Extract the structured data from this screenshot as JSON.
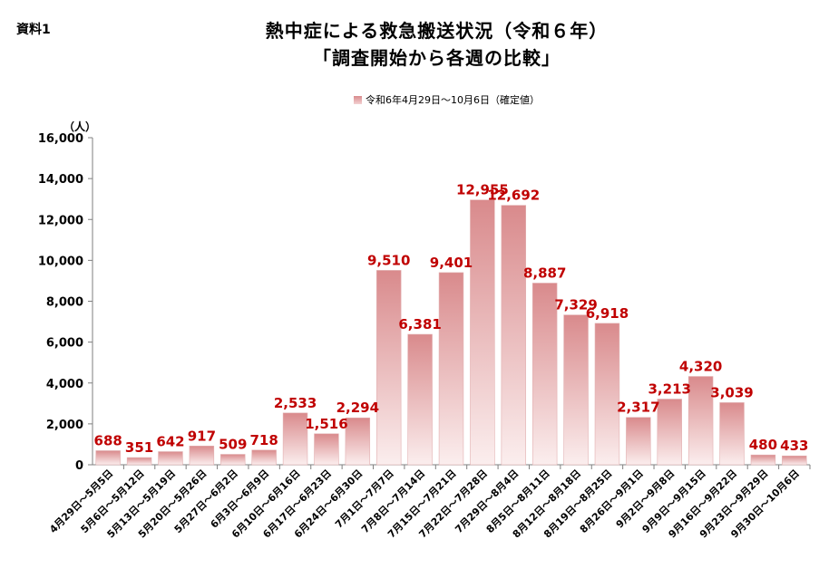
{
  "doc_label": "資料1",
  "title_line1": "熱中症による救急搬送状況（令和６年）",
  "title_line2": "「調査開始から各週の比較」",
  "chart_data": {
    "type": "bar",
    "unit_label": "（人）",
    "legend": "令和6年4月29日～10月6日（確定値）",
    "ylim": [
      0,
      16000
    ],
    "yticks": [
      "0",
      "2,000",
      "4,000",
      "6,000",
      "8,000",
      "10,000",
      "12,000",
      "14,000",
      "16,000"
    ],
    "categories": [
      "4月29日～5月5日",
      "5月6日～5月12日",
      "5月13日～5月19日",
      "5月20日～5月26日",
      "5月27日～6月2日",
      "6月3日～6月9日",
      "6月10日～6月16日",
      "6月17日～6月23日",
      "6月24日～6月30日",
      "7月1日～7月7日",
      "7月8日～7月14日",
      "7月15日～7月21日",
      "7月22日～7月28日",
      "7月29日～8月4日",
      "8月5日～8月11日",
      "8月12日～8月18日",
      "8月19日～8月25日",
      "8月26日～9月1日",
      "9月2日～9月8日",
      "9月9日～9月15日",
      "9月16日～9月22日",
      "9月23日～9月29日",
      "9月30日～10月6日"
    ],
    "values": [
      688,
      351,
      642,
      917,
      509,
      718,
      2533,
      1516,
      2294,
      9510,
      6381,
      9401,
      12955,
      12692,
      8887,
      7329,
      6918,
      2317,
      3213,
      4320,
      3039,
      480,
      433
    ],
    "labels": [
      "688",
      "351",
      "642",
      "917",
      "509",
      "718",
      "2,533",
      "1,516",
      "2,294",
      "9,510",
      "6,381",
      "9,401",
      "12,955",
      "12,692",
      "8,887",
      "7,329",
      "6,918",
      "2,317",
      "3,213",
      "4,320",
      "3,039",
      "480",
      "433"
    ],
    "bar_color_top": "#d98a8c",
    "bar_color_bottom": "#fbeeee",
    "label_color": "#c00000"
  }
}
